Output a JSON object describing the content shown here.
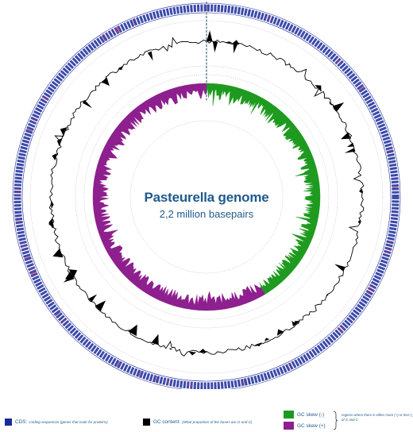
{
  "figure": {
    "title": "Pasteurella genome",
    "subtitle": "2,2 million basepairs"
  },
  "legend": {
    "cds": {
      "term": "CDS:",
      "description": "Coding sequences (genes that code for proteins)",
      "color": "#1a2a9a"
    },
    "gc_content": {
      "term": "GC content:",
      "description": "(What proportion of the bases are G and C)",
      "color": "#000000"
    },
    "gc_skew_minus": {
      "term": "GC skew (-)",
      "color": "#1e9a1e"
    },
    "gc_skew_plus": {
      "term": "GC skew (+)",
      "color": "#8e1f8e"
    },
    "skew_note": "regions where there is either more (+) or less (-) of G and C"
  },
  "colors": {
    "cds_ring": "#1a2a9a",
    "cds_accent": "#c0306a",
    "gc_content": "#000000",
    "gc_skew_minus": "#1e9a1e",
    "gc_skew_plus": "#8e1f8e",
    "title_text": "#1f5a8c",
    "origin_marker": "#4a6878"
  }
}
